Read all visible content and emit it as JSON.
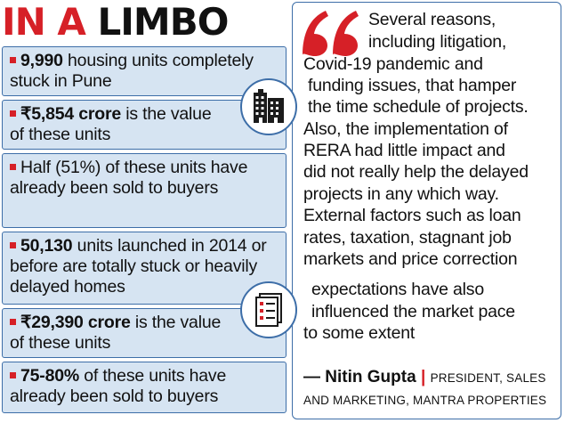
{
  "title": {
    "part1": "IN A",
    "part2": "LIMBO"
  },
  "facts": [
    {
      "bold": "9,990",
      "rest": " housing units completely stuck in Pune"
    },
    {
      "bold": "₹5,854 crore",
      "rest": " is the value of these units"
    },
    {
      "bold": "",
      "rest": "Half (51%) of these units have already been sold to buyers"
    },
    {
      "bold": "50,130",
      "rest": " units launched in 2014 or before are totally stuck or heavily delayed homes"
    },
    {
      "bold": "₹29,390 crore",
      "rest": " is the value of these units"
    },
    {
      "bold": "75-80%",
      "rest": " of these units have already been sold to buyers"
    }
  ],
  "quote": {
    "lines": [
      "Several reasons,",
      "including litigation,",
      "Covid-19 pandemic and",
      "funding issues, that hamper",
      "the time schedule of projects.",
      "Also, the implementation of",
      "RERA had little impact and",
      "did not really help the delayed",
      "projects in any which way.",
      "External factors such as loan",
      "rates, taxation, stagnant job",
      "markets and price correction",
      "expectations have also",
      "influenced the market pace",
      "to some extent"
    ],
    "dash": "—",
    "name": "Nitin Gupta",
    "separator": "|",
    "role": "PRESIDENT, SALES AND MARKETING, MANTRA PROPERTIES"
  },
  "colors": {
    "accent": "#d62027",
    "box_fill": "#d6e4f2",
    "border": "#3d6ea8"
  },
  "icons": [
    "buildings-icon",
    "checklist-document-icon",
    "quote-mark-icon"
  ]
}
